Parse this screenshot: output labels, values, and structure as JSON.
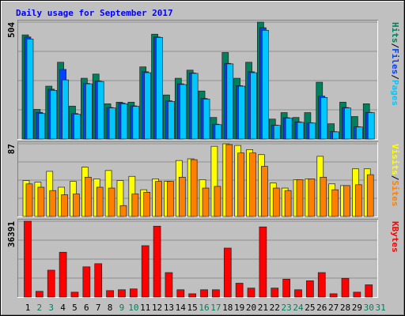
{
  "chart_data": [
    {
      "type": "bar",
      "title": "Daily usage for September 2017",
      "ylim": [
        0,
        504
      ],
      "yticks": [
        504
      ],
      "legend_separator": "/",
      "series": [
        {
          "name": "Hits",
          "color": "#00805c",
          "values": [
            449,
            128,
            228,
            331,
            142,
            262,
            280,
            152,
            159,
            159,
            311,
            452,
            190,
            262,
            297,
            207,
            93,
            373,
            262,
            331,
            504,
            86,
            114,
            93,
            114,
            245,
            66,
            159,
            97,
            152,
            null
          ]
        },
        {
          "name": "Files",
          "color": "#0040ff",
          "values": [
            440,
            115,
            215,
            300,
            110,
            240,
            250,
            136,
            155,
            143,
            290,
            440,
            165,
            238,
            285,
            175,
            64,
            326,
            230,
            290,
            480,
            60,
            92,
            74,
            70,
            185,
            32,
            136,
            53,
            115,
            null
          ]
        },
        {
          "name": "Pages",
          "color": "#00c8ff",
          "values": [
            431,
            110,
            210,
            255,
            107,
            238,
            248,
            134,
            152,
            141,
            286,
            438,
            162,
            235,
            283,
            172,
            62,
            324,
            228,
            286,
            469,
            59,
            90,
            72,
            69,
            179,
            31,
            134,
            52,
            114,
            null
          ]
        }
      ]
    },
    {
      "type": "bar",
      "ylim": [
        0,
        87
      ],
      "yticks": [
        87
      ],
      "series": [
        {
          "name": "Visits",
          "color": "#ffff00",
          "values": [
            43,
            41,
            54,
            35,
            42,
            59,
            45,
            55,
            43,
            48,
            32,
            45,
            42,
            67,
            69,
            44,
            84,
            87,
            85,
            80,
            74,
            40,
            34,
            44,
            45,
            72,
            39,
            37,
            57,
            57,
            null
          ]
        },
        {
          "name": "Sites",
          "color": "#ff8000",
          "values": [
            39,
            35,
            31,
            26,
            27,
            47,
            35,
            34,
            13,
            27,
            29,
            42,
            42,
            47,
            68,
            34,
            36,
            86,
            76,
            76,
            60,
            34,
            31,
            44,
            45,
            47,
            32,
            37,
            38,
            50,
            null
          ]
        }
      ]
    },
    {
      "type": "bar",
      "ylim": [
        0,
        36391
      ],
      "yticks": [
        36391
      ],
      "categories": [
        "1",
        "2",
        "3",
        "4",
        "5",
        "6",
        "7",
        "8",
        "9",
        "10",
        "11",
        "12",
        "13",
        "14",
        "15",
        "16",
        "17",
        "18",
        "19",
        "20",
        "21",
        "22",
        "23",
        "24",
        "25",
        "26",
        "27",
        "28",
        "29",
        "30",
        "31"
      ],
      "category_colors": [
        "#000000",
        "#00805c",
        "#00805c",
        "#000000",
        "#000000",
        "#000000",
        "#000000",
        "#000000",
        "#00805c",
        "#00805c",
        "#000000",
        "#000000",
        "#000000",
        "#000000",
        "#000000",
        "#00805c",
        "#00805c",
        "#000000",
        "#000000",
        "#000000",
        "#000000",
        "#000000",
        "#00805c",
        "#00805c",
        "#000000",
        "#000000",
        "#000000",
        "#000000",
        "#000000",
        "#00805c",
        "#00805c"
      ],
      "series": [
        {
          "name": "KBytes",
          "color": "#ff0000",
          "values": [
            36391,
            2740,
            12900,
            21500,
            2350,
            14500,
            16000,
            3100,
            3500,
            3900,
            24650,
            34000,
            11740,
            3500,
            1570,
            3500,
            3500,
            23500,
            6650,
            4300,
            33650,
            4300,
            8600,
            3500,
            7800,
            11740,
            1570,
            9000,
            2350,
            5870,
            null
          ]
        }
      ]
    }
  ]
}
